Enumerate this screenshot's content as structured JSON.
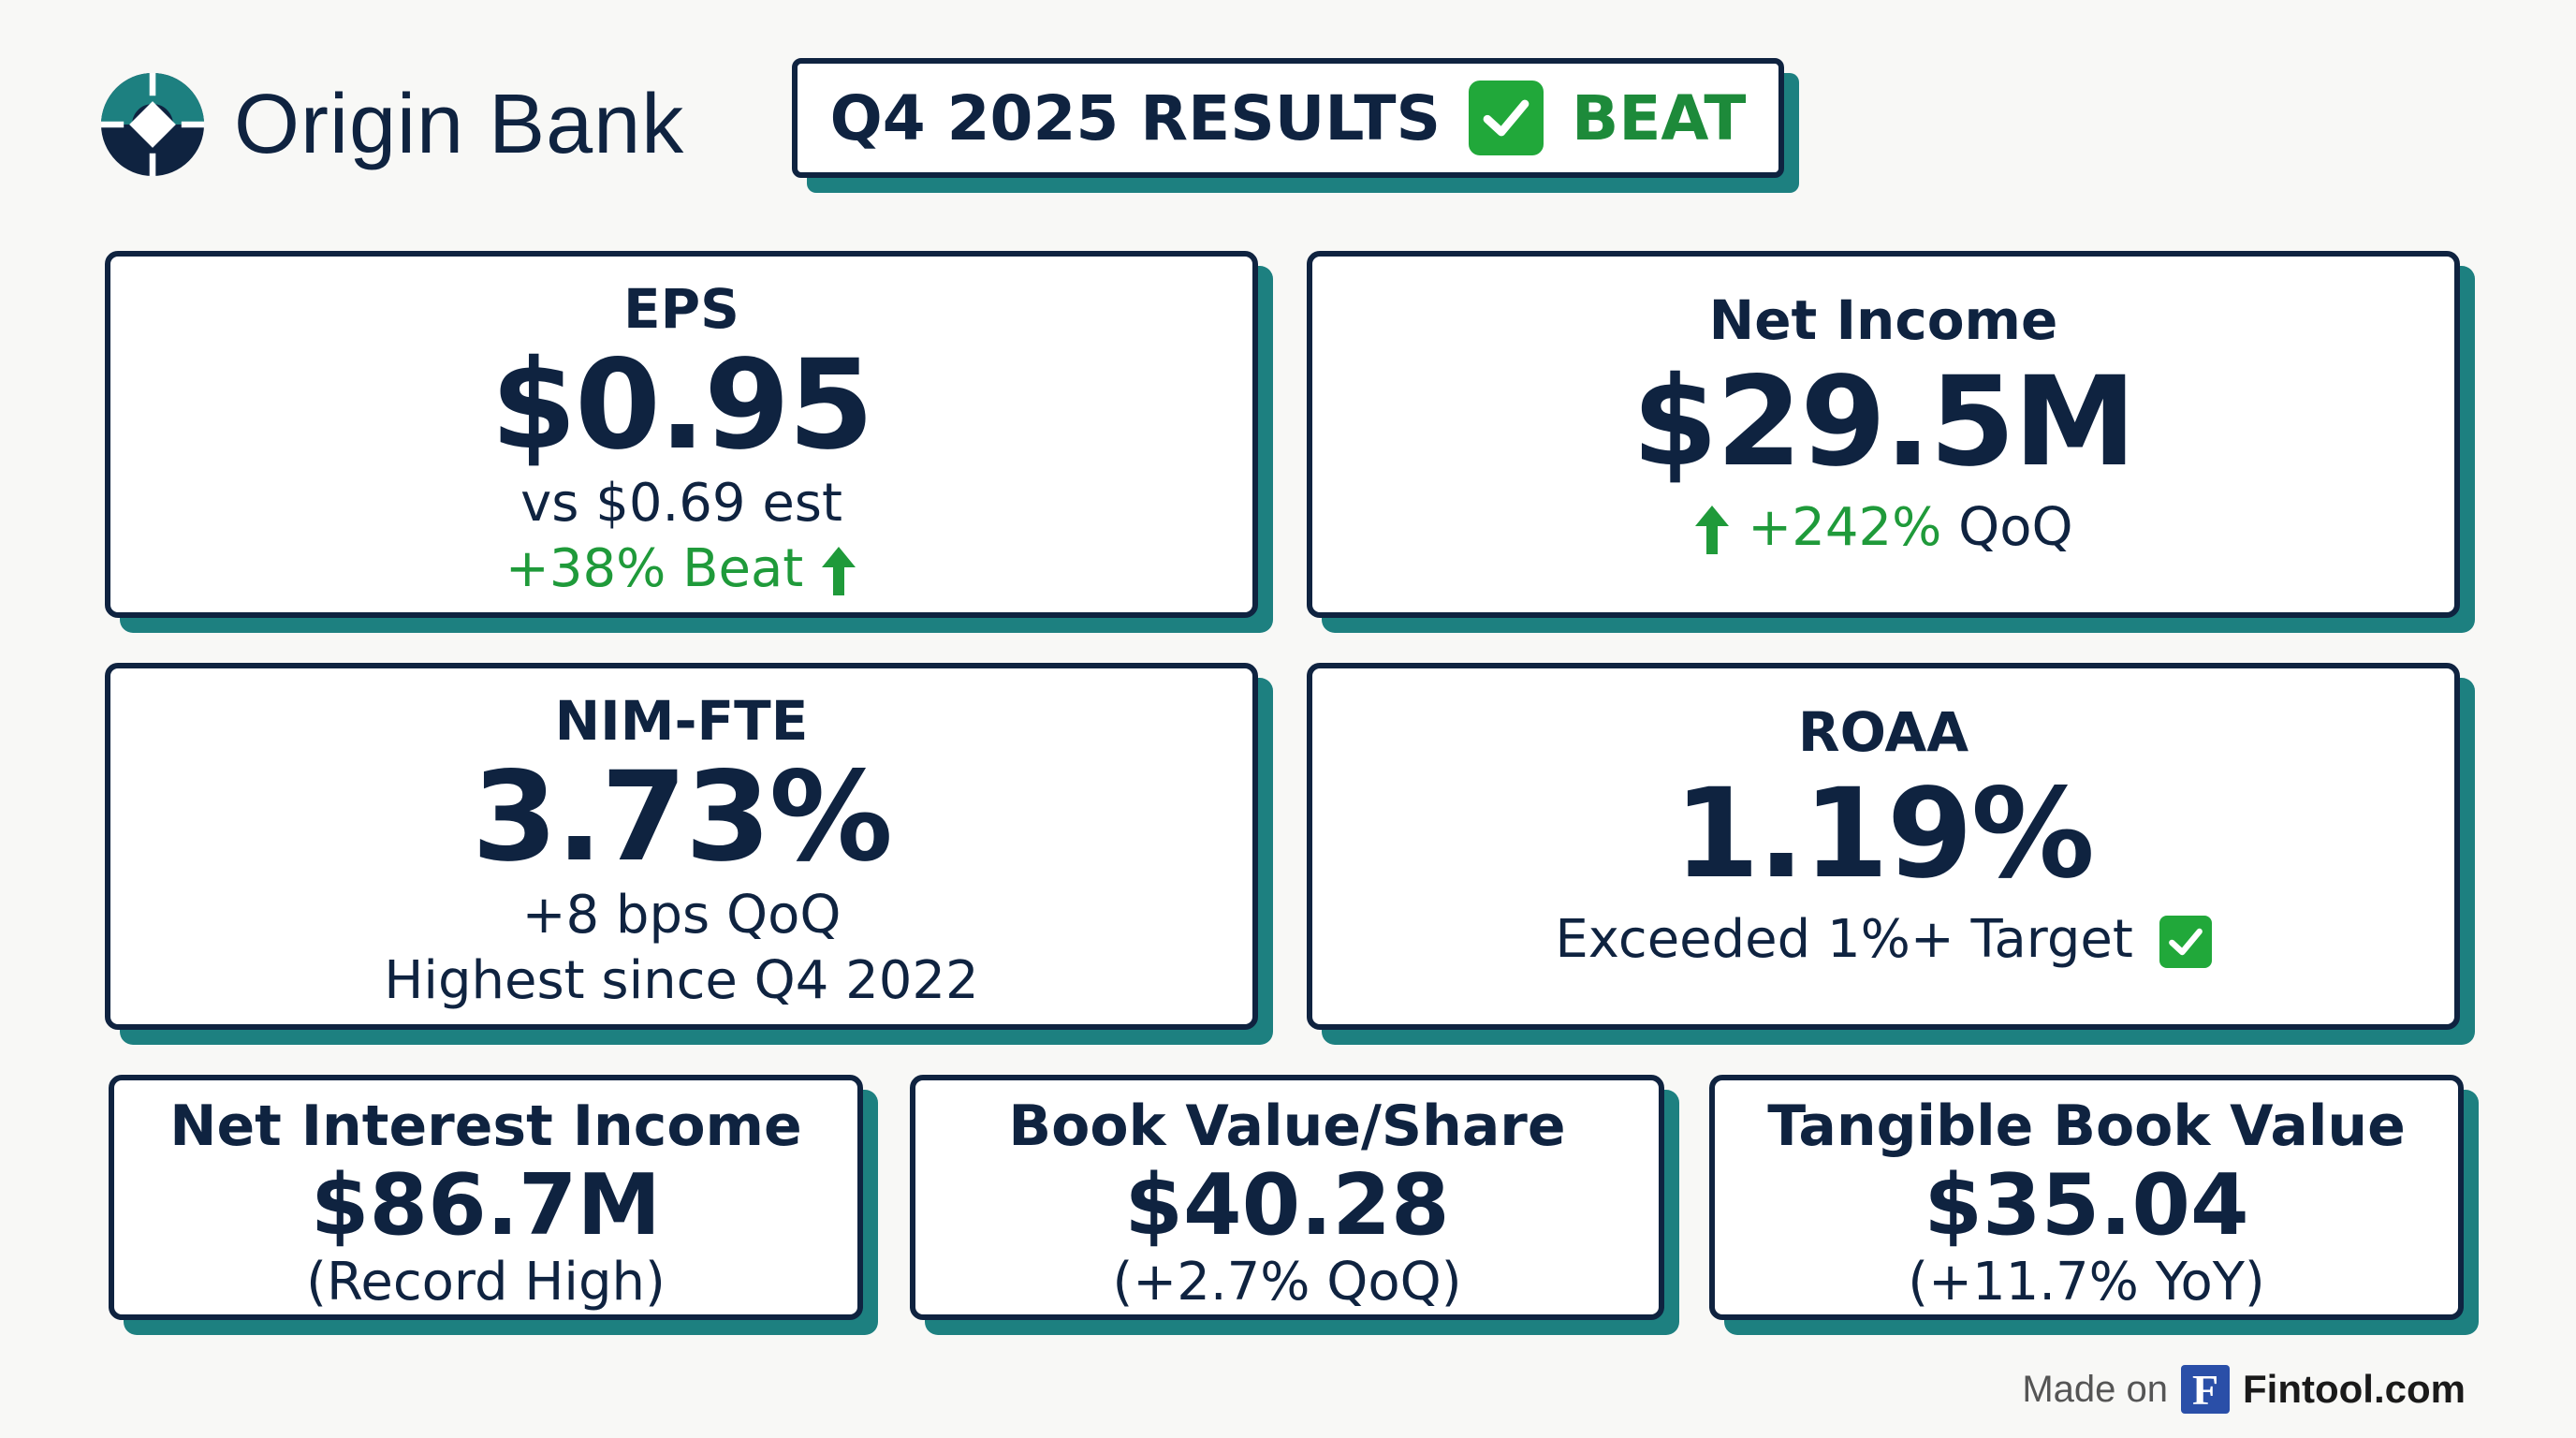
{
  "brand": {
    "name": "Origin Bank",
    "primary": "#0f2340",
    "accent": "#1d8080",
    "positive": "#1f9a3a"
  },
  "banner": {
    "title": "Q4 2025 RESULTS",
    "status": "BEAT",
    "icon": "check-icon"
  },
  "cards": {
    "eps": {
      "label": "EPS",
      "value": "$0.95",
      "comparison": "vs $0.69 est",
      "delta": "+38% Beat",
      "icon": "arrow-up-icon"
    },
    "net_income": {
      "label": "Net Income",
      "value": "$29.5M",
      "delta": "+242%",
      "delta_suffix": " QoQ",
      "icon": "arrow-up-icon"
    },
    "nim": {
      "label": "NIM-FTE",
      "value": "3.73%",
      "line1": "+8 bps QoQ",
      "line2": "Highest since Q4 2022"
    },
    "roaa": {
      "label": "ROAA",
      "value": "1.19%",
      "note": "Exceeded 1%+ Target",
      "icon": "check-icon"
    },
    "nii": {
      "label": "Net Interest Income",
      "value": "$86.7M",
      "note": "(Record High)"
    },
    "bvps": {
      "label": "Book Value/Share",
      "value": "$40.28",
      "note": "(+2.7% QoQ)"
    },
    "tbv": {
      "label": "Tangible Book Value",
      "value": "$35.04",
      "note": "(+11.7% YoY)"
    }
  },
  "footer": {
    "made_on": "Made on",
    "logo_letter": "F",
    "site": "Fintool.com"
  }
}
